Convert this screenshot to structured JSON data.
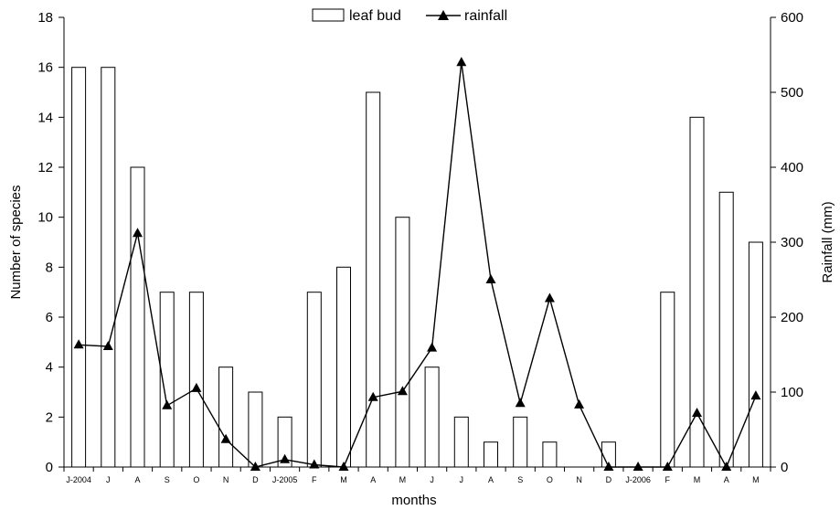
{
  "chart_data": {
    "type": "bar+line",
    "categories": [
      "J-2004",
      "J",
      "A",
      "S",
      "O",
      "N",
      "D",
      "J-2005",
      "F",
      "M",
      "A",
      "M",
      "J",
      "J",
      "A",
      "S",
      "O",
      "N",
      "D",
      "J-2006",
      "F",
      "M",
      "A",
      "M"
    ],
    "series": [
      {
        "name": "leaf bud",
        "type": "bar",
        "axis": "left",
        "color": "#ffffff",
        "values": [
          16,
          16,
          12,
          7,
          7,
          4,
          3,
          2,
          7,
          8,
          15,
          10,
          4,
          2,
          1,
          2,
          1,
          0,
          1,
          0,
          7,
          14,
          11,
          9
        ]
      },
      {
        "name": "rainfall",
        "type": "line",
        "axis": "right",
        "color": "#000000",
        "marker": "triangle",
        "values": [
          163,
          161,
          312,
          82,
          105,
          37,
          0,
          10,
          3,
          0,
          93,
          101,
          159,
          540,
          250,
          85,
          225,
          83,
          0,
          0,
          0,
          72,
          0,
          95
        ]
      }
    ],
    "xlabel": "months",
    "ylabel": "Number of species",
    "y2label": "Rainfall (mm)",
    "ylim": [
      0,
      18
    ],
    "y2lim": [
      0,
      600
    ],
    "yticks": [
      0,
      2,
      4,
      6,
      8,
      10,
      12,
      14,
      16,
      18
    ],
    "y2ticks": [
      0,
      100,
      200,
      300,
      400,
      500,
      600
    ],
    "legend_position": "top-center",
    "grid": false
  }
}
